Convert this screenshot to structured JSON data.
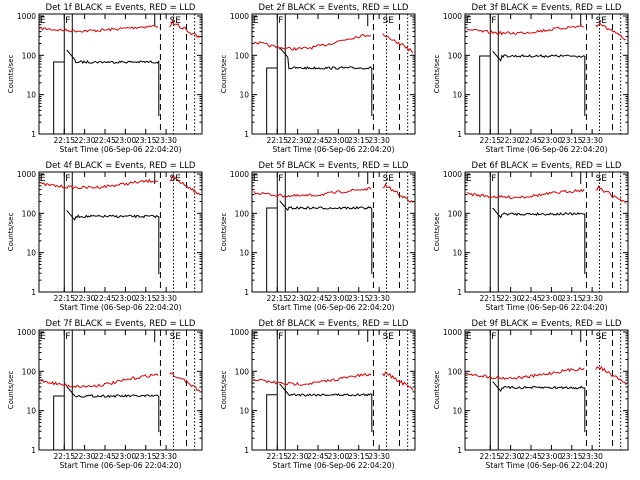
{
  "colors": {
    "events": "#000000",
    "lld": "#dd0000",
    "axis": "#000000",
    "background": "#ffffff"
  },
  "chart_data": [
    {
      "title": "Det 1f BLACK = Events, RED = LLD",
      "ylabel": "Counts/sec",
      "xlabel": "Start Time (06-Sep-06 22:04:20)",
      "xticks": [
        "22:15",
        "22:30",
        "22:45",
        "23:00",
        "23:15",
        "23:30"
      ],
      "yticks": [
        "1",
        "10",
        "100",
        "1000"
      ],
      "markers": [
        "E",
        "F",
        "SE"
      ],
      "type": "line",
      "yscale": "log"
    },
    {
      "title": "Det 2f BLACK = Events, RED = LLD",
      "ylabel": "Counts/sec",
      "xlabel": "Start Time (06-Sep-06 22:04:20)",
      "xticks": [
        "22:15",
        "22:30",
        "22:45",
        "23:00",
        "23:15",
        "23:30"
      ],
      "yticks": [
        "1",
        "10",
        "100",
        "1000"
      ],
      "markers": [
        "E",
        "F",
        "SE"
      ],
      "type": "line",
      "yscale": "log"
    },
    {
      "title": "Det 3f BLACK = Events, RED = LLD",
      "ylabel": "Counts/sec",
      "xlabel": "Start Time (06-Sep-06 22:04:20)",
      "xticks": [
        "22:15",
        "22:30",
        "22:45",
        "23:00",
        "23:15",
        "23:30"
      ],
      "yticks": [
        "1",
        "10",
        "100",
        "1000"
      ],
      "markers": [
        "E",
        "F",
        "SE"
      ],
      "type": "line",
      "yscale": "log"
    },
    {
      "title": "Det 4f BLACK = Events, RED = LLD",
      "ylabel": "Counts/sec",
      "xlabel": "Start Time (06-Sep-06 22:04:20)",
      "xticks": [
        "22:15",
        "22:30",
        "22:45",
        "23:00",
        "23:15",
        "23:30"
      ],
      "yticks": [
        "1",
        "10",
        "100",
        "1000"
      ],
      "markers": [
        "E",
        "F",
        "SE"
      ],
      "type": "line",
      "yscale": "log"
    },
    {
      "title": "Det 5f BLACK = Events, RED = LLD",
      "ylabel": "Counts/sec",
      "xlabel": "Start Time (06-Sep-06 22:04:20)",
      "xticks": [
        "22:15",
        "22:30",
        "22:45",
        "23:00",
        "23:15",
        "23:30"
      ],
      "yticks": [
        "1",
        "10",
        "100",
        "1000"
      ],
      "markers": [
        "E",
        "F",
        "SE"
      ],
      "type": "line",
      "yscale": "log"
    },
    {
      "title": "Det 6f BLACK = Events, RED = LLD",
      "ylabel": "Counts/sec",
      "xlabel": "Start Time (06-Sep-06 22:04:20)",
      "xticks": [
        "22:15",
        "22:30",
        "22:45",
        "23:00",
        "23:15",
        "23:30"
      ],
      "yticks": [
        "1",
        "10",
        "100",
        "1000"
      ],
      "markers": [
        "E",
        "F",
        "SE"
      ],
      "type": "line",
      "yscale": "log"
    },
    {
      "title": "Det 7f BLACK = Events, RED = LLD",
      "ylabel": "Counts/sec",
      "xlabel": "Start Time (06-Sep-06 22:04:20)",
      "xticks": [
        "22:15",
        "22:30",
        "22:45",
        "23:00",
        "23:15",
        "23:30"
      ],
      "yticks": [
        "1",
        "10",
        "100",
        "1000"
      ],
      "markers": [
        "E",
        "F",
        "SE"
      ],
      "type": "line",
      "yscale": "log"
    },
    {
      "title": "Det 8f BLACK = Events, RED = LLD",
      "ylabel": "Counts/sec",
      "xlabel": "Start Time (06-Sep-06 22:04:20)",
      "xticks": [
        "22:15",
        "22:30",
        "22:45",
        "23:00",
        "23:15",
        "23:30"
      ],
      "yticks": [
        "1",
        "10",
        "100",
        "1000"
      ],
      "markers": [
        "E",
        "F",
        "SE"
      ],
      "type": "line",
      "yscale": "log"
    },
    {
      "title": "Det 9f BLACK = Events, RED = LLD",
      "ylabel": "Counts/sec",
      "xlabel": "Start Time (06-Sep-06 22:04:20)",
      "xticks": [
        "22:15",
        "22:30",
        "22:45",
        "23:00",
        "23:15",
        "23:30"
      ],
      "yticks": [
        "1",
        "10",
        "100",
        "1000"
      ],
      "markers": [
        "E",
        "F",
        "SE"
      ],
      "type": "line",
      "yscale": "log"
    }
  ]
}
